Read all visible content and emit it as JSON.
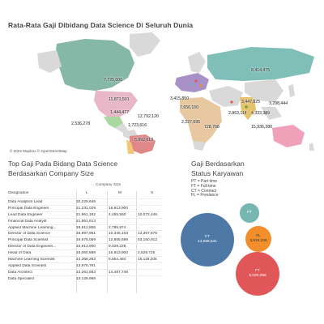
{
  "dashboard": {
    "title": "Rata-Rata Gaji Dibidang Data Science Di Seluruh Dunia"
  },
  "map": {
    "credit": "© 2022 Mapbox © OpenStreetMap",
    "labels": [
      {
        "name": "ca",
        "text": "7,725,000"
      },
      {
        "name": "us",
        "text": "11,871,501"
      },
      {
        "name": "ru",
        "text": "8,414,475"
      },
      {
        "name": "mx",
        "text": "1,444,477"
      },
      {
        "name": "co",
        "text": "12,792,120"
      },
      {
        "name": "br",
        "text": "1,723,616"
      },
      {
        "name": "cl",
        "text": "5,992,613"
      },
      {
        "name": "hi",
        "text": "2,536,278"
      },
      {
        "name": "eu1",
        "text": "3,415,850"
      },
      {
        "name": "eu2",
        "text": "7,656,150"
      },
      {
        "name": "af",
        "text": "2,227,695"
      },
      {
        "name": "za",
        "text": "728,768"
      },
      {
        "name": "in",
        "text": "3,447,825"
      },
      {
        "name": "jp",
        "text": "3,298,444"
      },
      {
        "name": "se",
        "text": "2,863,114"
      },
      {
        "name": "au",
        "text": "15,936,380"
      },
      {
        "name": "sea",
        "text": "4,333,389"
      }
    ],
    "colors": {
      "ocean": "#ffffff",
      "land_default": "#d9d9d9",
      "russia": "#7fbfb8",
      "canada": "#86b8a8",
      "usa": "#e8b8c8",
      "mexico": "#a8d8a0",
      "brazil": "#e08888",
      "chile": "#f0c878",
      "australia": "#f0a0b8",
      "india": "#e6c36a",
      "africa": "#e8c8a0",
      "europe": "#a890c8"
    }
  },
  "table": {
    "title_line1": "Top Gaji Pada Bidang Data Science",
    "title_line2": "Berdasarkan Company Size",
    "group_header": "Company Size",
    "col_designation": "Designation",
    "col_l": "L",
    "col_m": "M",
    "col_s": "S",
    "rows": [
      {
        "designation": "Data Analytics Lead",
        "l": "32,225,646",
        "m": "",
        "s": ""
      },
      {
        "designation": "Principal Data Engineer",
        "l": "21,231,029",
        "m": "16,913,900",
        "s": ""
      },
      {
        "designation": "Lead Data Engineer",
        "l": "21,961,182",
        "m": "4,455,592",
        "s": "10,072,445"
      },
      {
        "designation": "Financial Data Analyst",
        "l": "21,861,613",
        "m": "",
        "s": ""
      },
      {
        "designation": "Applied Machine Learning...",
        "l": "19,812,806",
        "m": "2,795,874",
        "s": ""
      },
      {
        "designation": "Director of Data Science",
        "l": "16,997,961",
        "m": "10,346,104",
        "s": "13,367,676"
      },
      {
        "designation": "Principal Data Scientist",
        "l": "16,675,059",
        "m": "12,855,699",
        "s": "53,150,912"
      },
      {
        "designation": "Director of Data Engineeri...",
        "l": "15,913,900",
        "m": "9,029,229",
        "s": ""
      },
      {
        "designation": "Head of Data",
        "l": "15,060,889",
        "m": "16,913,900",
        "s": "2,629,725"
      },
      {
        "designation": "Machine Learning Scientist",
        "l": "14,368,263",
        "m": "6,564,484",
        "s": "15,118,205"
      },
      {
        "designation": "Applied Data Scientist",
        "l": "13,976,791",
        "m": "",
        "s": ""
      },
      {
        "designation": "Data Architect",
        "l": "13,261,583",
        "m": "14,487,746",
        "s": ""
      },
      {
        "designation": "Data Specialist",
        "l": "13,128,968",
        "m": "",
        "s": ""
      }
    ]
  },
  "status": {
    "title_line1": "Gaji Berdasarkan",
    "title_line2": "Status Karyawan",
    "legend": [
      "PT = Part time",
      "FT = Full time",
      "CT = Contract",
      "FL = Freelance"
    ],
    "bubbles": [
      {
        "code": "CT",
        "value": "14,686,541",
        "color": "#4e79a7"
      },
      {
        "code": "FT",
        "value": "9,020,056",
        "color": "#e15759"
      },
      {
        "code": "FL",
        "value": "3,819,336",
        "color": "#f28e2b"
      },
      {
        "code": "PT",
        "value": "",
        "color": "#76b7b2"
      }
    ]
  }
}
